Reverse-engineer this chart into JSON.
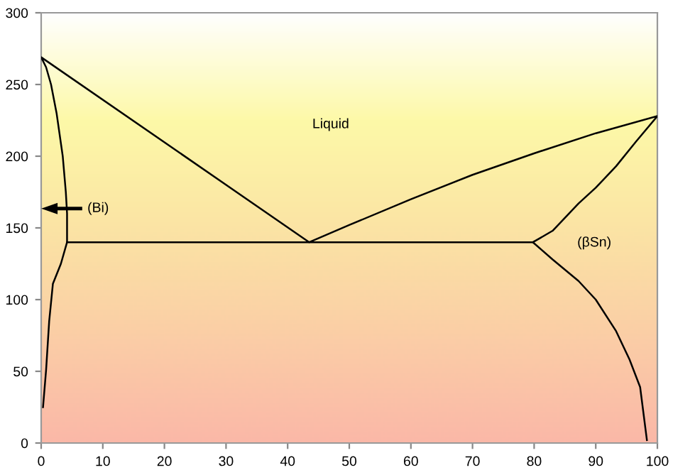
{
  "chart_data": {
    "type": "line",
    "xlim": [
      0,
      100
    ],
    "ylim": [
      0,
      300
    ],
    "xticks": [
      0,
      10,
      20,
      30,
      40,
      50,
      60,
      70,
      80,
      90,
      100
    ],
    "yticks": [
      0,
      50,
      100,
      150,
      200,
      250,
      300
    ],
    "grid": false,
    "marker": "none",
    "line_style": "solid",
    "series": [
      {
        "color": "#000000",
        "x": [
          0.3,
          0.8,
          1.3,
          1.9,
          3.2,
          4.2,
          4.2,
          4.0,
          3.5,
          2.5,
          1.6,
          0.8,
          0,
          43.5,
          50,
          60,
          70,
          80,
          90,
          100,
          96.5,
          93.3,
          90,
          87.2,
          83,
          79.8,
          83,
          87.2,
          90,
          93.3,
          95.5,
          97.2,
          98.3
        ],
        "values": [
          25,
          51,
          85,
          111,
          125,
          140,
          160,
          175,
          200,
          230,
          250,
          262,
          269,
          140,
          152,
          170,
          187,
          202,
          216,
          228,
          210,
          193,
          178,
          167,
          148,
          140,
          128,
          113,
          100,
          78,
          58,
          39,
          2
        ]
      },
      {
        "color": "#000000",
        "x": [
          4.2,
          79.8
        ],
        "values": [
          140,
          140
        ]
      }
    ],
    "annotations": [
      "Liquid",
      "(Bi)",
      "(βSn)"
    ]
  }
}
